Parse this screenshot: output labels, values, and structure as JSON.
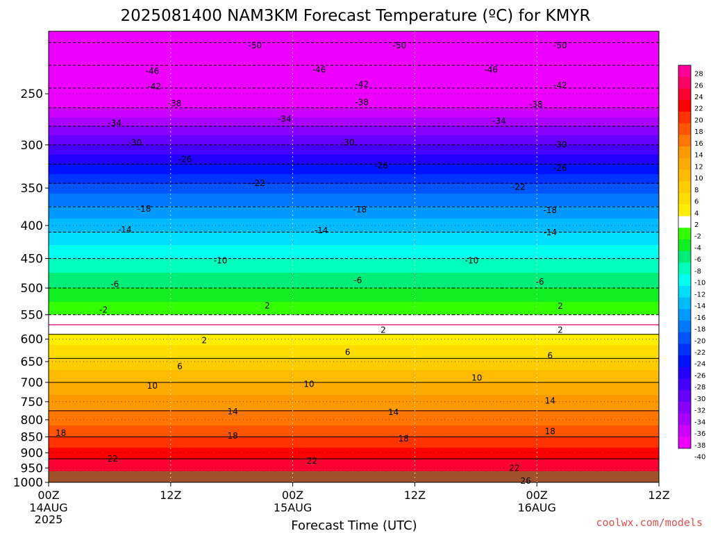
{
  "chart_data": {
    "type": "heatmap",
    "title": "2025081400 NAM3KM Forecast Temperature (ºC) for KMYR",
    "xlabel": "Forecast Time (UTC)",
    "ylabel": "",
    "x_ticks": [
      {
        "hour": 0,
        "label": "00Z",
        "date": "14AUG",
        "year": "2025"
      },
      {
        "hour": 12,
        "label": "12Z",
        "date": "",
        "year": ""
      },
      {
        "hour": 24,
        "label": "00Z",
        "date": "15AUG",
        "year": ""
      },
      {
        "hour": 36,
        "label": "12Z",
        "date": "",
        "year": ""
      },
      {
        "hour": 48,
        "label": "00Z",
        "date": "16AUG",
        "year": ""
      },
      {
        "hour": 60,
        "label": "12Z",
        "date": "",
        "year": ""
      }
    ],
    "xlim": [
      0,
      60
    ],
    "y_ticks": [
      250,
      300,
      350,
      400,
      450,
      500,
      550,
      600,
      650,
      700,
      750,
      800,
      850,
      900,
      950,
      1000
    ],
    "ylim": [
      1000,
      200
    ],
    "y_scale": "log",
    "colorbar_labels": [
      28,
      26,
      24,
      22,
      20,
      18,
      16,
      14,
      12,
      10,
      8,
      6,
      4,
      2,
      -2,
      -4,
      -6,
      -8,
      -10,
      -12,
      -14,
      -16,
      -18,
      -20,
      -22,
      -24,
      -26,
      -28,
      -30,
      -32,
      -34,
      -36,
      -38,
      -40
    ],
    "colorbar_colors": [
      "#ff0099",
      "#ff0066",
      "#ff0033",
      "#ff0000",
      "#ff3300",
      "#ff5500",
      "#ff7700",
      "#ff9900",
      "#ffaa00",
      "#ffbb00",
      "#ffcc00",
      "#ffdd00",
      "#ffee00",
      "#ffffff",
      "#33ff00",
      "#11ee22",
      "#00ee77",
      "#00ffbb",
      "#00ffee",
      "#00ddff",
      "#00bbff",
      "#0099ff",
      "#0077ff",
      "#0055ff",
      "#0033ff",
      "#0011ff",
      "#2200ff",
      "#4400ff",
      "#6600ff",
      "#8800ff",
      "#aa00ff",
      "#cc00ff",
      "#ee00ff"
    ],
    "profile": {
      "pressure": [
        1000,
        950,
        900,
        850,
        800,
        750,
        700,
        650,
        600,
        570,
        550,
        500,
        450,
        400,
        350,
        300,
        250,
        200
      ],
      "temperature": [
        26,
        23.5,
        21,
        18,
        15,
        13,
        10,
        6.5,
        3,
        0,
        -2,
        -6,
        -10,
        -15,
        -21,
        -30,
        -41,
        -52
      ]
    },
    "contour_labels": [
      {
        "hour": 20.3,
        "p": 210,
        "value": "-50"
      },
      {
        "hour": 34.5,
        "p": 210,
        "value": "-50"
      },
      {
        "hour": 50.3,
        "p": 210,
        "value": "-50"
      },
      {
        "hour": 10.2,
        "p": 230,
        "value": "-46"
      },
      {
        "hour": 26.6,
        "p": 229,
        "value": "-46"
      },
      {
        "hour": 43.5,
        "p": 229,
        "value": "-46"
      },
      {
        "hour": 10.4,
        "p": 243,
        "value": "-42"
      },
      {
        "hour": 30.8,
        "p": 241,
        "value": "-42"
      },
      {
        "hour": 50.3,
        "p": 242,
        "value": "-42"
      },
      {
        "hour": 12.4,
        "p": 258,
        "value": "-38"
      },
      {
        "hour": 30.8,
        "p": 257,
        "value": "-38"
      },
      {
        "hour": 47.9,
        "p": 259,
        "value": "-38"
      },
      {
        "hour": 6.5,
        "p": 277,
        "value": "-34"
      },
      {
        "hour": 23.2,
        "p": 273,
        "value": "-34"
      },
      {
        "hour": 44.3,
        "p": 275,
        "value": "-34"
      },
      {
        "hour": 8.5,
        "p": 297,
        "value": "-30"
      },
      {
        "hour": 29.4,
        "p": 297,
        "value": "-30"
      },
      {
        "hour": 50.3,
        "p": 299,
        "value": "-30"
      },
      {
        "hour": 13.4,
        "p": 315,
        "value": "-26"
      },
      {
        "hour": 32.7,
        "p": 322,
        "value": "-26"
      },
      {
        "hour": 50.3,
        "p": 325,
        "value": "-26"
      },
      {
        "hour": 20.6,
        "p": 343,
        "value": "-22"
      },
      {
        "hour": 46.2,
        "p": 348,
        "value": "-22"
      },
      {
        "hour": 9.4,
        "p": 376,
        "value": "-18"
      },
      {
        "hour": 30.6,
        "p": 377,
        "value": "-18"
      },
      {
        "hour": 49.3,
        "p": 378,
        "value": "-18"
      },
      {
        "hour": 7.5,
        "p": 405,
        "value": "-14"
      },
      {
        "hour": 26.8,
        "p": 406,
        "value": "-14"
      },
      {
        "hour": 49.3,
        "p": 409,
        "value": "-14"
      },
      {
        "hour": 16.9,
        "p": 452,
        "value": "-10"
      },
      {
        "hour": 41.6,
        "p": 452,
        "value": "-10"
      },
      {
        "hour": 6.5,
        "p": 492,
        "value": "-6"
      },
      {
        "hour": 30.4,
        "p": 485,
        "value": "-6"
      },
      {
        "hour": 48.3,
        "p": 488,
        "value": "-6"
      },
      {
        "hour": 5.4,
        "p": 539,
        "value": "-2"
      },
      {
        "hour": 50.3,
        "p": 532,
        "value": "2"
      },
      {
        "hour": 21.5,
        "p": 531,
        "value": "2"
      },
      {
        "hour": 32.9,
        "p": 579,
        "value": "2"
      },
      {
        "hour": 50.3,
        "p": 579,
        "value": "2"
      },
      {
        "hour": 15.3,
        "p": 601,
        "value": "2"
      },
      {
        "hour": 29.4,
        "p": 627,
        "value": "6"
      },
      {
        "hour": 12.9,
        "p": 660,
        "value": "6"
      },
      {
        "hour": 49.3,
        "p": 635,
        "value": "6"
      },
      {
        "hour": 10.2,
        "p": 707,
        "value": "10"
      },
      {
        "hour": 25.6,
        "p": 703,
        "value": "10"
      },
      {
        "hour": 42.1,
        "p": 687,
        "value": "10"
      },
      {
        "hour": 18.1,
        "p": 775,
        "value": "14"
      },
      {
        "hour": 33.9,
        "p": 777,
        "value": "14"
      },
      {
        "hour": 49.3,
        "p": 746,
        "value": "14"
      },
      {
        "hour": 1.2,
        "p": 837,
        "value": "18"
      },
      {
        "hour": 18.1,
        "p": 845,
        "value": "18"
      },
      {
        "hour": 34.9,
        "p": 853,
        "value": "18"
      },
      {
        "hour": 49.3,
        "p": 832,
        "value": "18"
      },
      {
        "hour": 6.3,
        "p": 917,
        "value": "22"
      },
      {
        "hour": 25.9,
        "p": 924,
        "value": "22"
      },
      {
        "hour": 45.8,
        "p": 948,
        "value": "22"
      },
      {
        "hour": 46.9,
        "p": 992,
        "value": "26"
      }
    ],
    "grid": true,
    "legend": "right"
  },
  "credit": "coolwx.com/models"
}
